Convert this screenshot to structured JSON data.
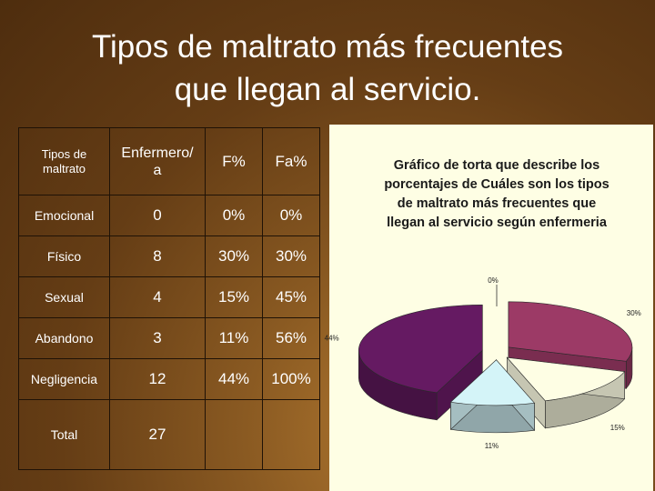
{
  "slide": {
    "title_line1": "Tipos de maltrato más frecuentes",
    "title_line2": "que llegan al servicio."
  },
  "table": {
    "headers": [
      "Tipos de maltrato",
      "Enfermero/ a",
      "F%",
      "Fa%"
    ],
    "header_lines": [
      [
        "Tipos de",
        "maltrato"
      ],
      [
        "Enfermero/",
        "a"
      ],
      [
        "F%"
      ],
      [
        "Fa%"
      ]
    ],
    "rows": [
      [
        "Emocional",
        "0",
        "0%",
        "0%"
      ],
      [
        "Físico",
        "8",
        "30%",
        "30%"
      ],
      [
        "Sexual",
        "4",
        "15%",
        "45%"
      ],
      [
        "Abandono",
        "3",
        "11%",
        "56%"
      ],
      [
        "Negligencia",
        "12",
        "44%",
        "100%"
      ],
      [
        "Total",
        "27",
        "",
        ""
      ]
    ]
  },
  "chart_data": {
    "type": "pie",
    "title": "Gráfico de torta que describe los porcentajes de Cuáles son los tipos de maltrato más frecuentes que llegan al servicio según enfermeria",
    "title_lines": [
      "Gráfico de torta que describe los",
      "porcentajes de Cuáles son los tipos",
      "de maltrato más frecuentes que",
      "llegan al servicio según enfermeria"
    ],
    "slices": [
      {
        "value": 0,
        "label": "0%",
        "color": "#9a9acf"
      },
      {
        "value": 30,
        "label": "30%",
        "color": "#9c3a66"
      },
      {
        "value": 15,
        "label": "15%",
        "color": "#fefee4"
      },
      {
        "value": 11,
        "label": "11%",
        "color": "#d4f4f8"
      },
      {
        "value": 44,
        "label": "44%",
        "color": "#651a62"
      }
    ],
    "style": "3d-exploded",
    "legend": "none"
  }
}
